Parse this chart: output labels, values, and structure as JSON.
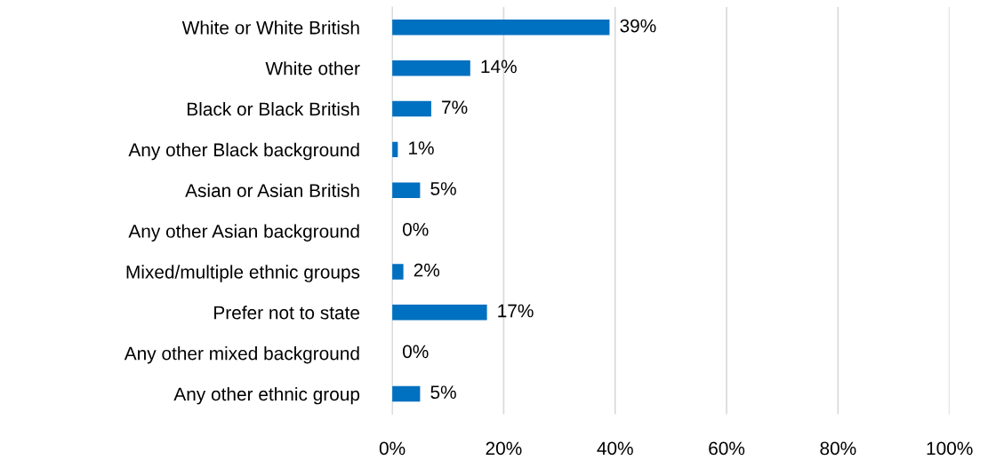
{
  "chart_data": {
    "type": "bar",
    "orientation": "horizontal",
    "categories": [
      "White or White British",
      "White other",
      "Black or Black British",
      "Any other Black background",
      "Asian or Asian British",
      "Any other Asian background",
      "Mixed/multiple ethnic groups",
      "Prefer not to state",
      "Any other mixed background",
      "Any other ethnic group"
    ],
    "values": [
      39,
      14,
      7,
      1,
      5,
      0,
      2,
      17,
      0,
      5
    ],
    "color": "#0070c0",
    "value_labels": [
      "39%",
      "14%",
      "7%",
      "1%",
      "5%",
      "0%",
      "2%",
      "17%",
      "0%",
      "5%"
    ],
    "xlim": [
      0,
      100
    ],
    "xticks": [
      {
        "value": 0,
        "label": "0%"
      },
      {
        "value": 20,
        "label": "20%"
      },
      {
        "value": 40,
        "label": "40%"
      },
      {
        "value": 60,
        "label": "60%"
      },
      {
        "value": 80,
        "label": "80%"
      },
      {
        "value": 100,
        "label": "100%"
      }
    ],
    "grid": "x",
    "legend": false
  }
}
